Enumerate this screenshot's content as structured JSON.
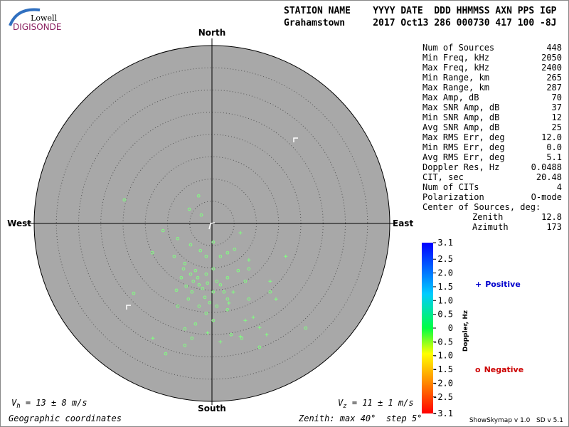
{
  "header": {
    "logo_top": "Lowell",
    "logo_bottom": "DIGISONDE",
    "labels": "STATION NAME    YYYY DATE  DDD HHMMSS AXN PPS IGP",
    "values": "Grahamstown     2017 Oct13 286 000730 417 100 -8J"
  },
  "stats": [
    {
      "label": "Num of Sources",
      "value": "448"
    },
    {
      "label": "Min Freq, kHz",
      "value": "2050"
    },
    {
      "label": "Max Freq, kHz",
      "value": "2400"
    },
    {
      "label": "Min Range, km",
      "value": "265"
    },
    {
      "label": "Max Range, km",
      "value": "287"
    },
    {
      "label": "Max Amp, dB",
      "value": "70"
    },
    {
      "label": "Max SNR Amp, dB",
      "value": "37"
    },
    {
      "label": "Min SNR Amp, dB",
      "value": "12"
    },
    {
      "label": "Avg SNR Amp, dB",
      "value": "25"
    },
    {
      "label": "Max RMS Err, deg",
      "value": "12.0"
    },
    {
      "label": "Min RMS Err, deg",
      "value": "0.0"
    },
    {
      "label": "Avg RMS Err, deg",
      "value": "5.1"
    },
    {
      "label": "Doppler Res, Hz",
      "value": "0.0488"
    },
    {
      "label": "CIT, sec",
      "value": "20.48"
    },
    {
      "label": "Num of CITs",
      "value": "4"
    },
    {
      "label": "Polarization",
      "value": "O-mode"
    }
  ],
  "center": {
    "title": "Center of Sources, deg:",
    "items": [
      {
        "label": "Zenith",
        "value": "12.8"
      },
      {
        "label": "Azimuth",
        "value": "173"
      }
    ]
  },
  "chart_data": {
    "type": "skymap",
    "directions": {
      "north": "North",
      "south": "South",
      "east": "East",
      "west": "West"
    },
    "rlim": [
      0,
      40
    ],
    "rings": [
      5,
      10,
      15,
      20,
      25,
      30,
      35,
      40
    ],
    "background": "#a8a8a8",
    "series": [
      {
        "name": "Positive",
        "marker": "+",
        "color": "#80ff80",
        "legend_color": "#0000cc",
        "x": [
          6.4,
          16.6,
          8.3,
          -13.3,
          7.5,
          10.7,
          12.3,
          6.4,
          1.9,
          -1.0,
          9.3,
          13.1,
          14.4,
          4.8,
          3.8
        ],
        "y": [
          -2.1,
          -7.4,
          -8.2,
          -25.8,
          -21.8,
          -23.4,
          -25.0,
          -25.4,
          -26.6,
          -24.6,
          -21.1,
          -13.0,
          -17.0,
          -15.4,
          -17.9
        ]
      },
      {
        "name": "Negative",
        "marker": "o",
        "color": "#80ff80",
        "legend_color": "#cc0000",
        "x": [
          -19.7,
          -5.1,
          -3.0,
          -2.4,
          -11.0,
          -7.7,
          -4.8,
          -13.4,
          -8.5,
          -6.1,
          -3.7,
          -1.3,
          0.3,
          1.9,
          3.5,
          5.1,
          -4.2,
          -2.9,
          -2.1,
          -1.0,
          -4.5,
          -5.8,
          -6.9,
          -8.0,
          0.3,
          1.9,
          3.5,
          5.9,
          8.3,
          7.5,
          3.5,
          -0.5,
          -2.9,
          -5.3,
          -7.7,
          -1.3,
          0.3,
          -3.7,
          -6.1,
          -4.5,
          4.3,
          6.7,
          10.7,
          -10.4,
          -17.6,
          -6.1,
          8.3,
          13.1,
          21.1,
          3.5,
          -1.3,
          0.3,
          -2.6,
          -4.8,
          -3.2,
          1.1,
          -6.4,
          2.7,
          1.1,
          -1.6
        ],
        "y": [
          5.3,
          3.2,
          6.2,
          1.9,
          -1.6,
          -3.4,
          -4.8,
          -6.6,
          -7.4,
          -9.0,
          -10.6,
          -11.4,
          -10.2,
          -7.4,
          -6.6,
          -5.8,
          -13.0,
          -13.8,
          -14.6,
          -13.4,
          -15.4,
          -14.1,
          -12.2,
          -15.0,
          -15.4,
          -13.8,
          -12.2,
          -10.6,
          -10.2,
          -13.0,
          -17.0,
          -17.8,
          -18.6,
          -17.0,
          -18.6,
          -20.2,
          -21.8,
          -22.6,
          -23.7,
          -25.8,
          -25.0,
          -25.8,
          -27.8,
          -29.3,
          -15.7,
          -27.4,
          -17.0,
          -15.4,
          -23.5,
          -19.4,
          -7.4,
          -4.2,
          -6.1,
          -11.4,
          -12.2,
          -13.0,
          -10.2,
          -15.4,
          -18.6,
          -16.6
        ]
      }
    ],
    "colorbar": {
      "label": "Doppler, Hz",
      "clim": [
        -3.1,
        3.1
      ],
      "ticks": [
        3.1,
        2.5,
        {
          "value": 2,
          "label": "2.0"
        },
        1.5,
        {
          "value": 1,
          "label": "1.0"
        },
        0.5,
        0,
        -0.5,
        {
          "value": -1,
          "label": "-1.0"
        },
        -1.5,
        {
          "value": -2,
          "label": "-2.0"
        },
        -2.5,
        -3.1
      ]
    }
  },
  "footer": {
    "vh": {
      "symbol": "V",
      "subscript": "h",
      "text": " = 13 ± 8 m/s"
    },
    "vz": {
      "symbol": "V",
      "subscript": "z",
      "text": " = 11 ± 1 m/s"
    },
    "coordinates": "Geographic coordinates",
    "zenith": "Zenith: max 40°  step 5°",
    "version": "ShowSkymap v 1.0   SD v 5.1"
  }
}
